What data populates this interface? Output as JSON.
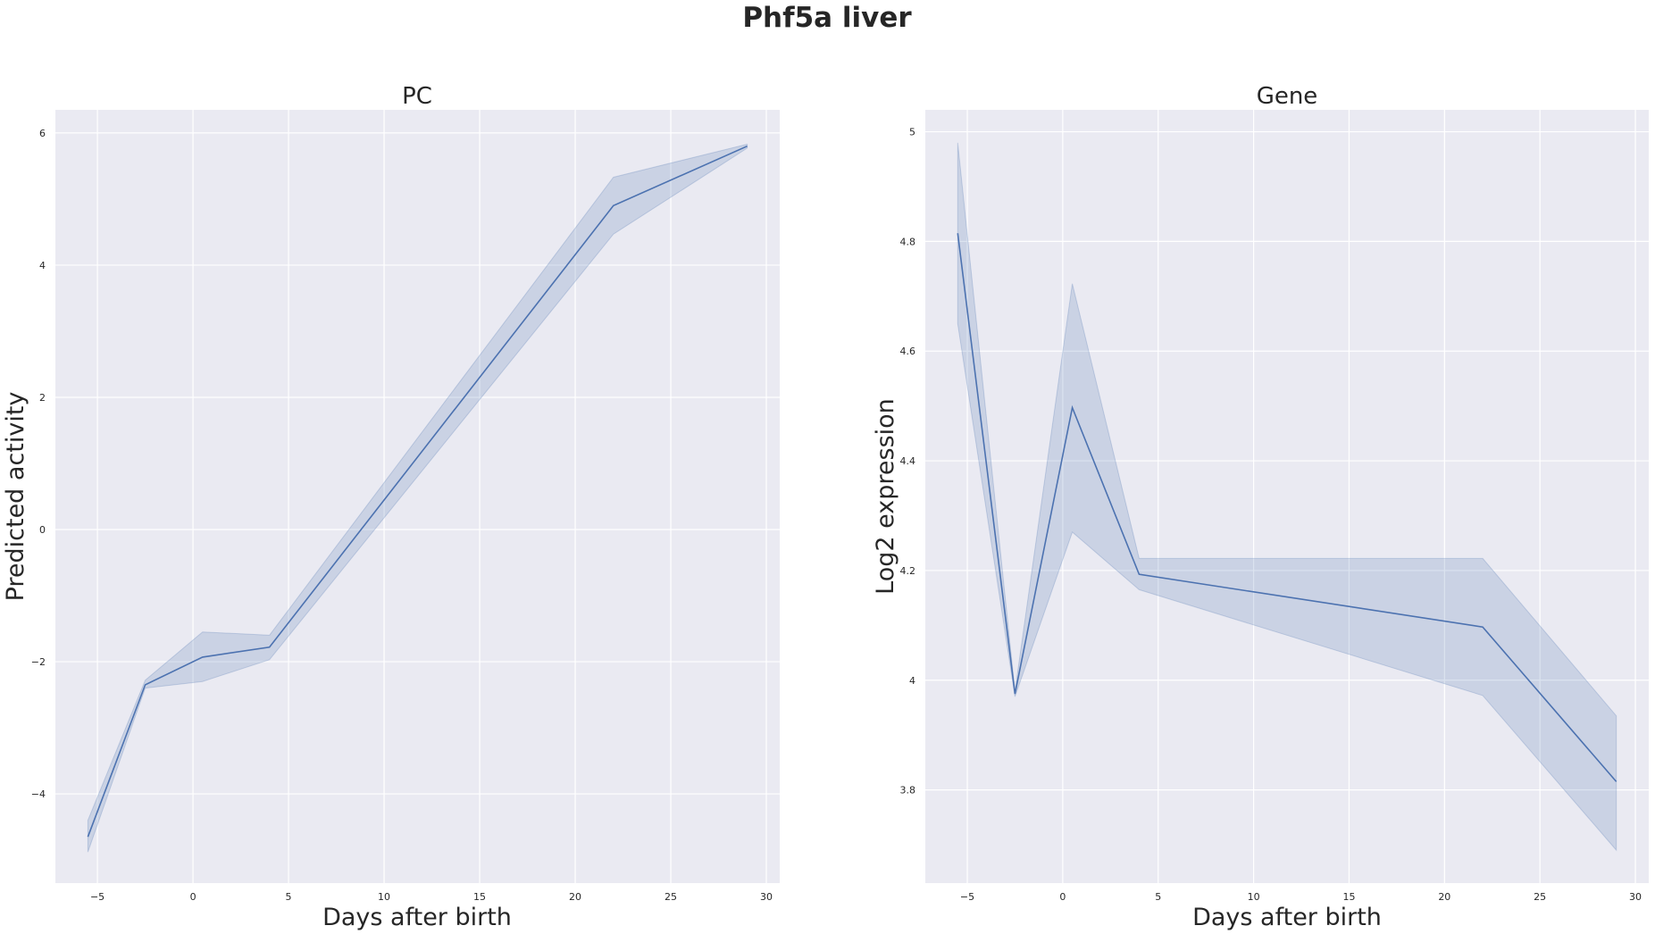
{
  "figure": {
    "title": "Phf5a liver"
  },
  "colors": {
    "line": "#4c72b0",
    "background": "#eaeaf2",
    "grid": "#ffffff"
  },
  "chart_data": [
    {
      "type": "line",
      "title": "PC",
      "xlabel": "Days after birth",
      "ylabel": "Predicted activity",
      "xlim": [
        -7.2,
        30.7
      ],
      "ylim": [
        -5.35,
        6.35
      ],
      "xticks": [
        -5,
        0,
        5,
        10,
        15,
        20,
        25,
        30
      ],
      "yticks": [
        -4,
        -2,
        0,
        2,
        4,
        6
      ],
      "grid": true,
      "series": [
        {
          "x": [
            -5.5,
            -2.5,
            0.5,
            4,
            22,
            29
          ],
          "y": [
            -4.65,
            -2.35,
            -1.93,
            -1.78,
            4.9,
            5.8
          ],
          "ci_low": [
            -4.88,
            -2.4,
            -2.3,
            -1.97,
            4.47,
            5.77
          ],
          "ci_high": [
            -4.4,
            -2.28,
            -1.55,
            -1.6,
            5.33,
            5.83
          ]
        }
      ]
    },
    {
      "type": "line",
      "title": "Gene",
      "xlabel": "Days after birth",
      "ylabel": "Log2 expression",
      "xlim": [
        -7.2,
        30.7
      ],
      "ylim": [
        3.63,
        5.04
      ],
      "xticks": [
        -5,
        0,
        5,
        10,
        15,
        20,
        25,
        30
      ],
      "yticks": [
        3.8,
        4.0,
        4.2,
        4.4,
        4.6,
        4.8,
        5.0
      ],
      "grid": true,
      "series": [
        {
          "x": [
            -5.5,
            -2.5,
            0.5,
            4,
            22,
            29
          ],
          "y": [
            4.815,
            3.975,
            4.497,
            4.193,
            4.097,
            3.815
          ],
          "ci_low": [
            4.65,
            3.97,
            4.27,
            4.165,
            3.972,
            3.69
          ],
          "ci_high": [
            4.98,
            3.98,
            4.723,
            4.222,
            4.222,
            3.935
          ]
        }
      ]
    }
  ]
}
